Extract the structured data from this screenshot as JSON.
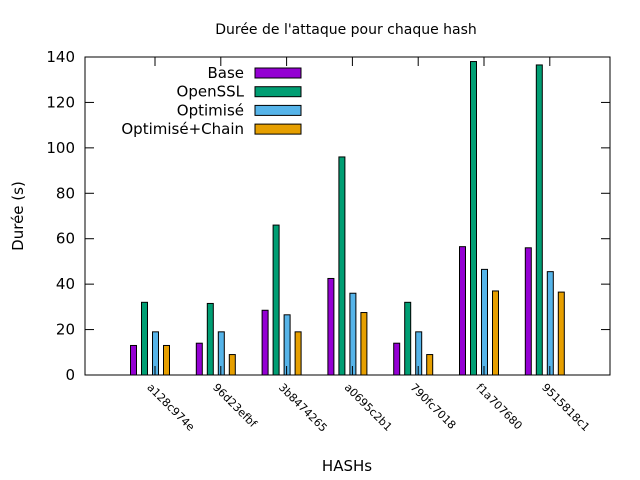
{
  "chart_data": {
    "type": "bar",
    "title": "Durée de l'attaque pour chaque hash",
    "xlabel": "HASHs",
    "ylabel": "Durée (s)",
    "ylim": [
      0,
      140
    ],
    "yticks": [
      0,
      20,
      40,
      60,
      80,
      100,
      120,
      140
    ],
    "grid": false,
    "legend_position": "top-left",
    "categories": [
      "a128c974e",
      "96d23efbf",
      "3b8474265",
      "a0695c2b1",
      "790fc7018",
      "f1a707680",
      "9515818c1"
    ],
    "series": [
      {
        "name": "Base",
        "color": "#9400d3",
        "values": [
          13,
          14,
          28.5,
          42.5,
          14,
          56.5,
          56
        ]
      },
      {
        "name": "OpenSSL",
        "color": "#009e73",
        "values": [
          32,
          31.5,
          66,
          96,
          32,
          138,
          136.5
        ]
      },
      {
        "name": "Optimisé",
        "color": "#56b4e9",
        "values": [
          19,
          19,
          26.5,
          36,
          19,
          46.5,
          45.5
        ]
      },
      {
        "name": "Optimisé+Chain",
        "color": "#e69f00",
        "values": [
          13,
          9,
          19,
          27.5,
          9,
          37,
          36.5
        ]
      }
    ]
  }
}
